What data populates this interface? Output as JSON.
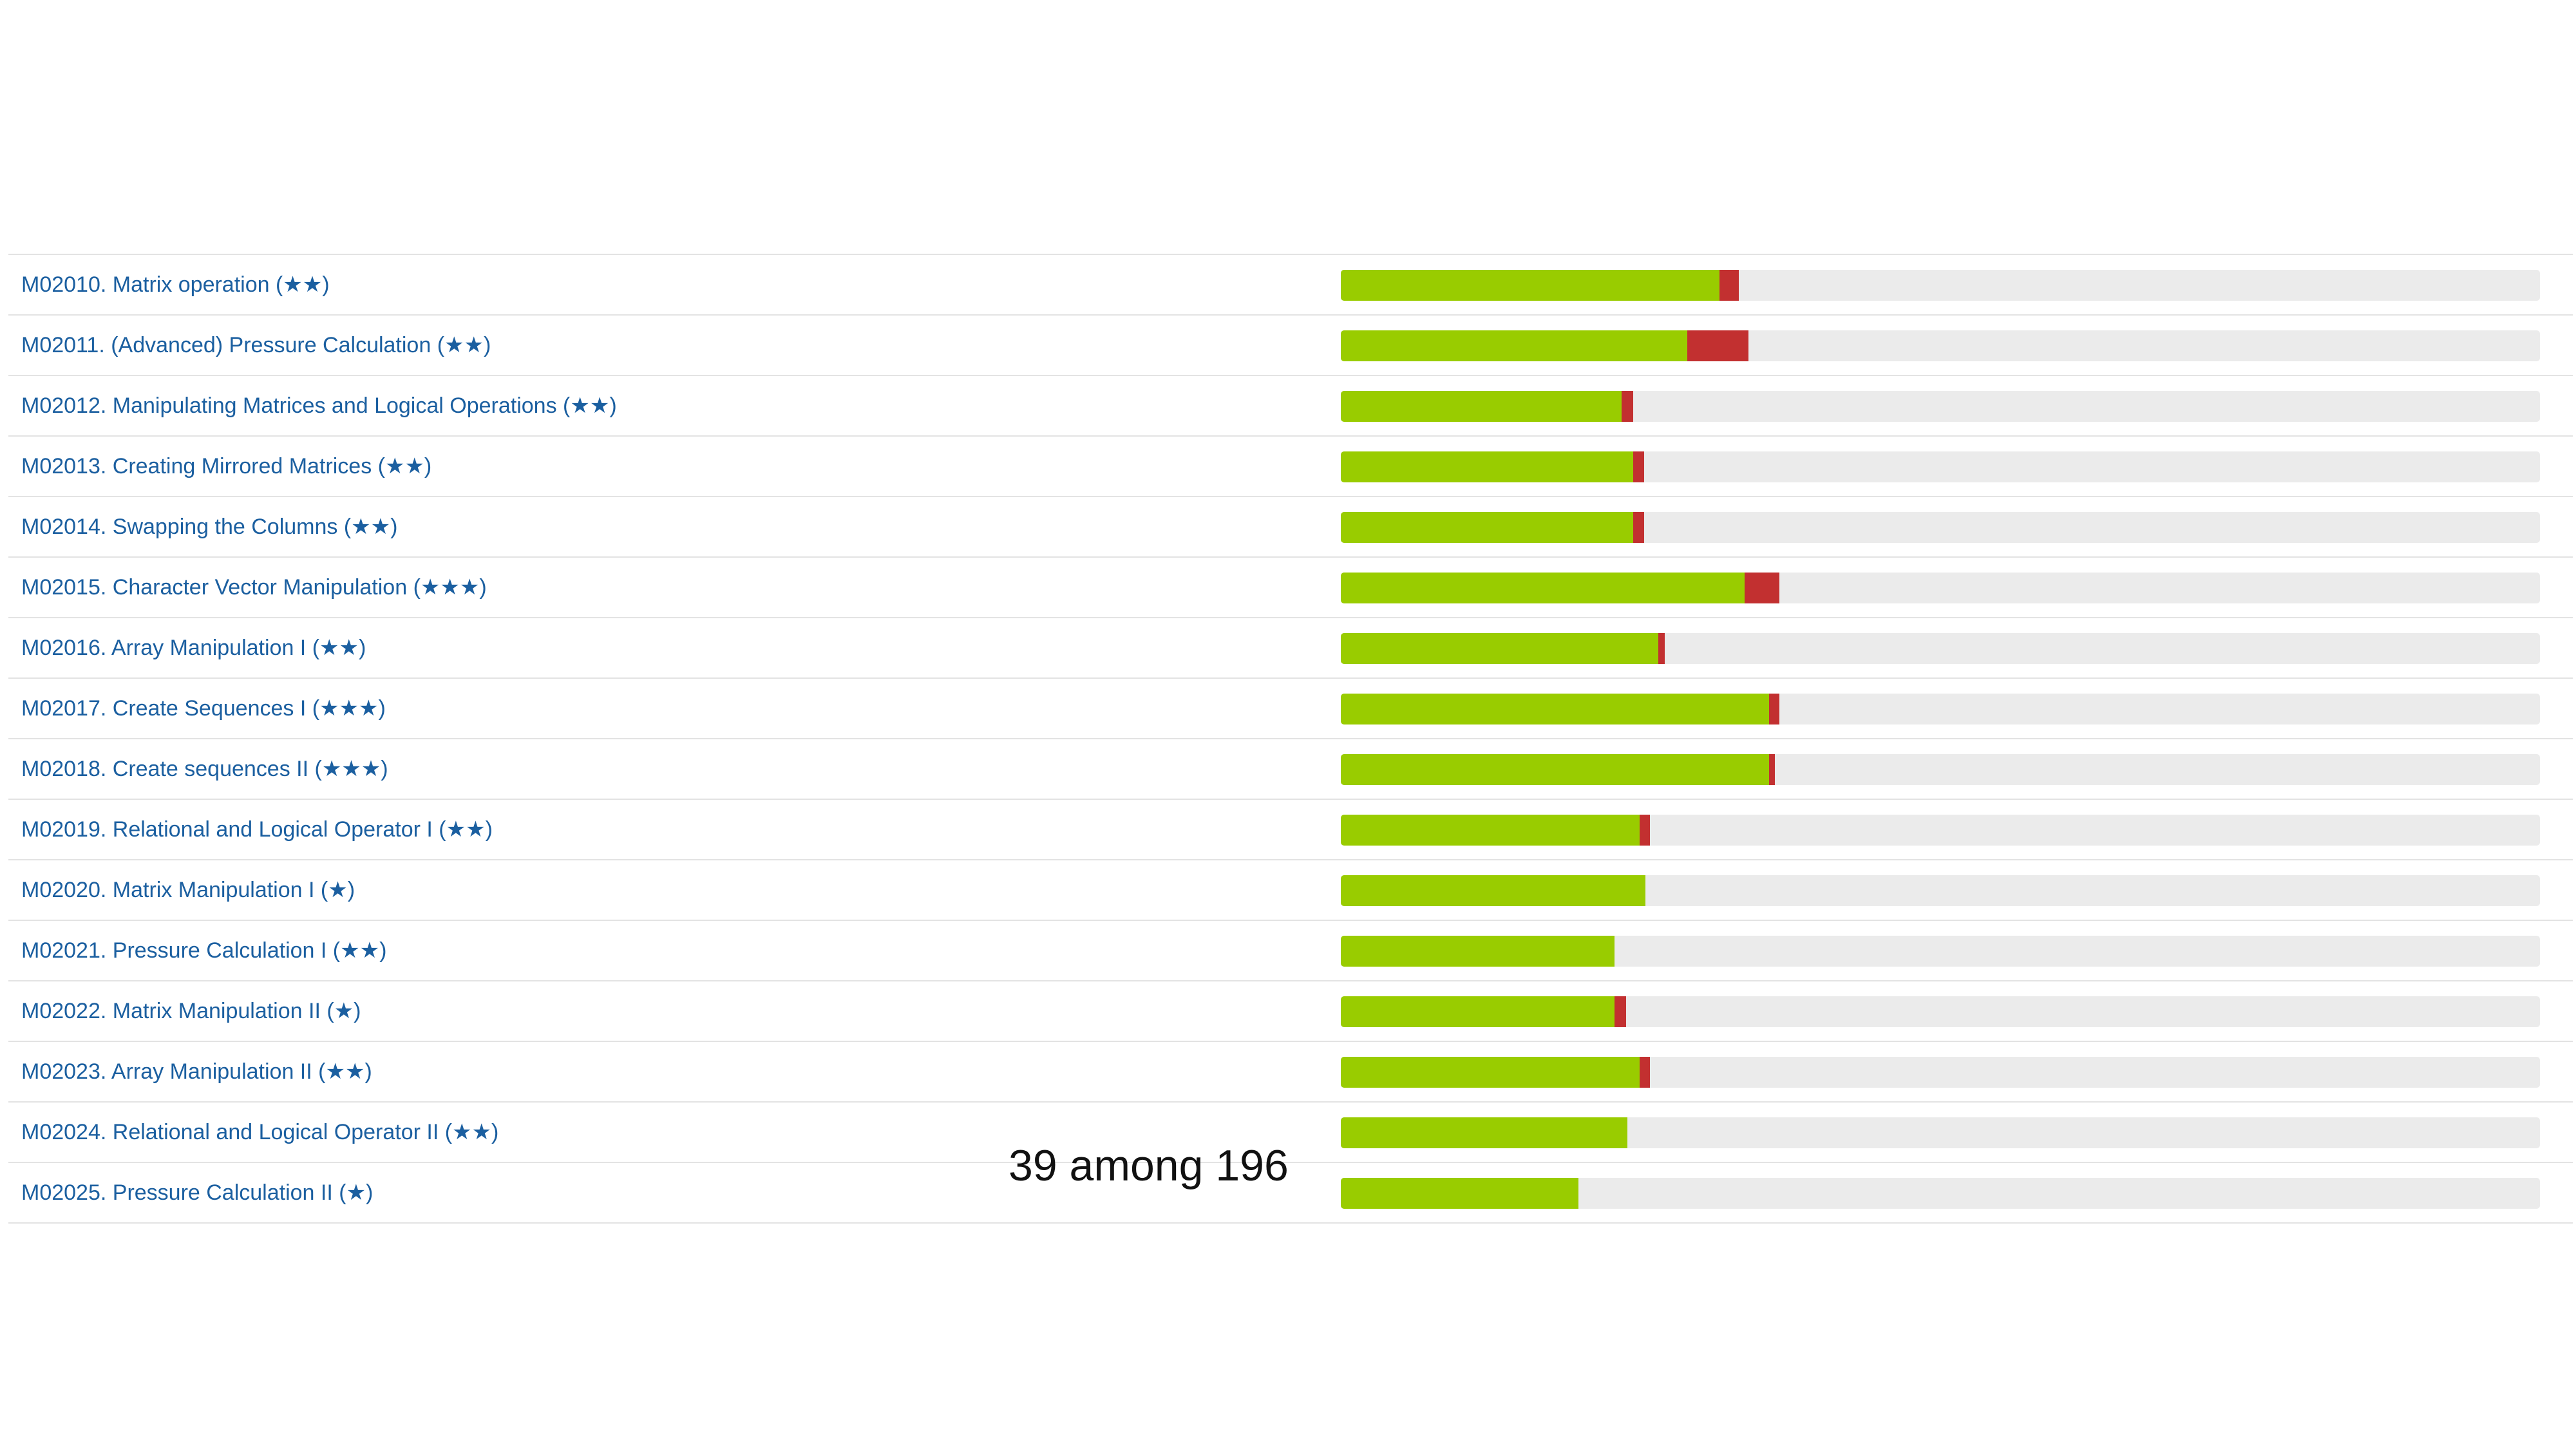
{
  "colors": {
    "link": "#1b5fa0",
    "pass": "#99cc00",
    "fail": "#c23030",
    "track": "#ebebeb"
  },
  "problems": [
    {
      "label": "M02010. Matrix operation (★★)",
      "pass": 0.316,
      "fail": 0.016
    },
    {
      "label": "M02011. (Advanced) Pressure Calculation (★★)",
      "pass": 0.289,
      "fail": 0.051
    },
    {
      "label": "M02012. Manipulating Matrices and Logical Operations (★★)",
      "pass": 0.234,
      "fail": 0.01
    },
    {
      "label": "M02013. Creating Mirrored Matrices (★★)",
      "pass": 0.244,
      "fail": 0.009
    },
    {
      "label": "M02014. Swapping the Columns (★★)",
      "pass": 0.244,
      "fail": 0.009
    },
    {
      "label": "M02015. Character Vector Manipulation (★★★)",
      "pass": 0.337,
      "fail": 0.029
    },
    {
      "label": "M02016. Array Manipulation I (★★)",
      "pass": 0.265,
      "fail": 0.005
    },
    {
      "label": "M02017. Create Sequences I (★★★)",
      "pass": 0.357,
      "fail": 0.009
    },
    {
      "label": "M02018. Create sequences II (★★★)",
      "pass": 0.357,
      "fail": 0.005
    },
    {
      "label": "M02019. Relational and Logical Operator I (★★)",
      "pass": 0.249,
      "fail": 0.009
    },
    {
      "label": "M02020. Matrix Manipulation I (★)",
      "pass": 0.254,
      "fail": 0
    },
    {
      "label": "M02021. Pressure Calculation I (★★)",
      "pass": 0.228,
      "fail": 0
    },
    {
      "label": "M02022. Matrix Manipulation II (★)",
      "pass": 0.228,
      "fail": 0.01
    },
    {
      "label": "M02023. Array Manipulation II (★★)",
      "pass": 0.249,
      "fail": 0.009
    },
    {
      "label": "M02024. Relational and Logical Operator II (★★)",
      "pass": 0.239,
      "fail": 0
    },
    {
      "label": "M02025. Pressure Calculation II (★)",
      "pass": 0.198,
      "fail": 0
    }
  ],
  "count_label": "39 among 196"
}
